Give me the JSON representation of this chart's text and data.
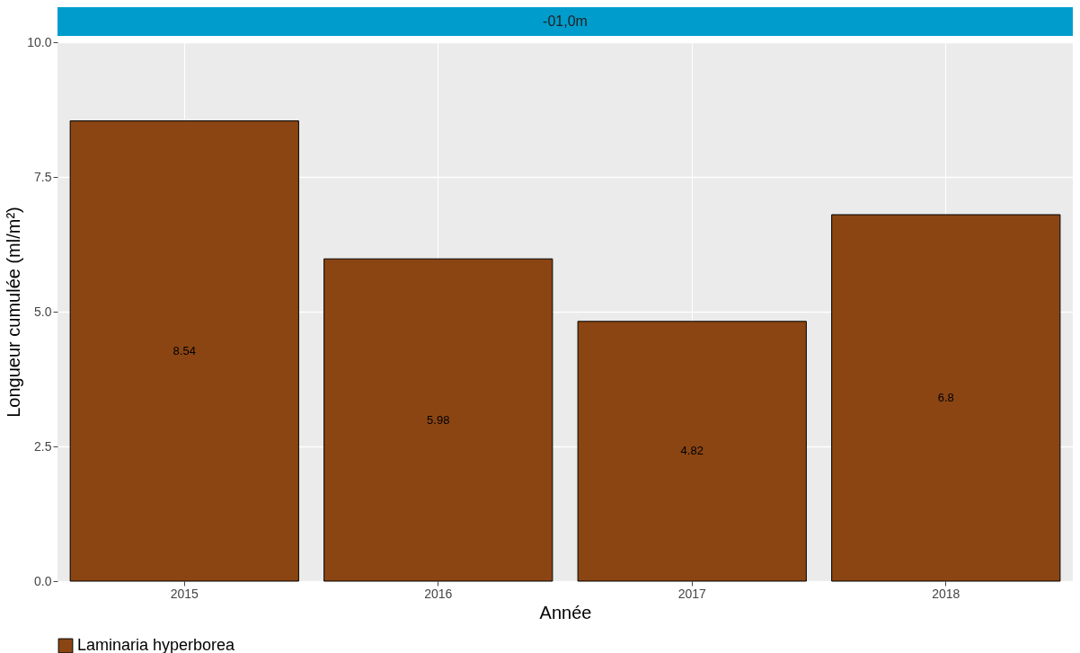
{
  "chart_data": {
    "type": "bar",
    "title": "-01,0m",
    "xlabel": "Année",
    "ylabel": "Longueur cumulée (ml/m²)",
    "categories": [
      "2015",
      "2016",
      "2017",
      "2018"
    ],
    "series": [
      {
        "name": "Laminaria hyperborea",
        "color": "#8b4513",
        "values": [
          8.54,
          5.98,
          4.82,
          6.8
        ]
      }
    ],
    "ylim": [
      0,
      10
    ],
    "yticks": [
      {
        "value": 0,
        "label": "0.0"
      },
      {
        "value": 2.5,
        "label": "2.5"
      },
      {
        "value": 5,
        "label": "5.0"
      },
      {
        "value": 7.5,
        "label": "7.5"
      },
      {
        "value": 10,
        "label": "10.0"
      }
    ],
    "grid": true,
    "legend": "bottom",
    "data_labels": true
  }
}
